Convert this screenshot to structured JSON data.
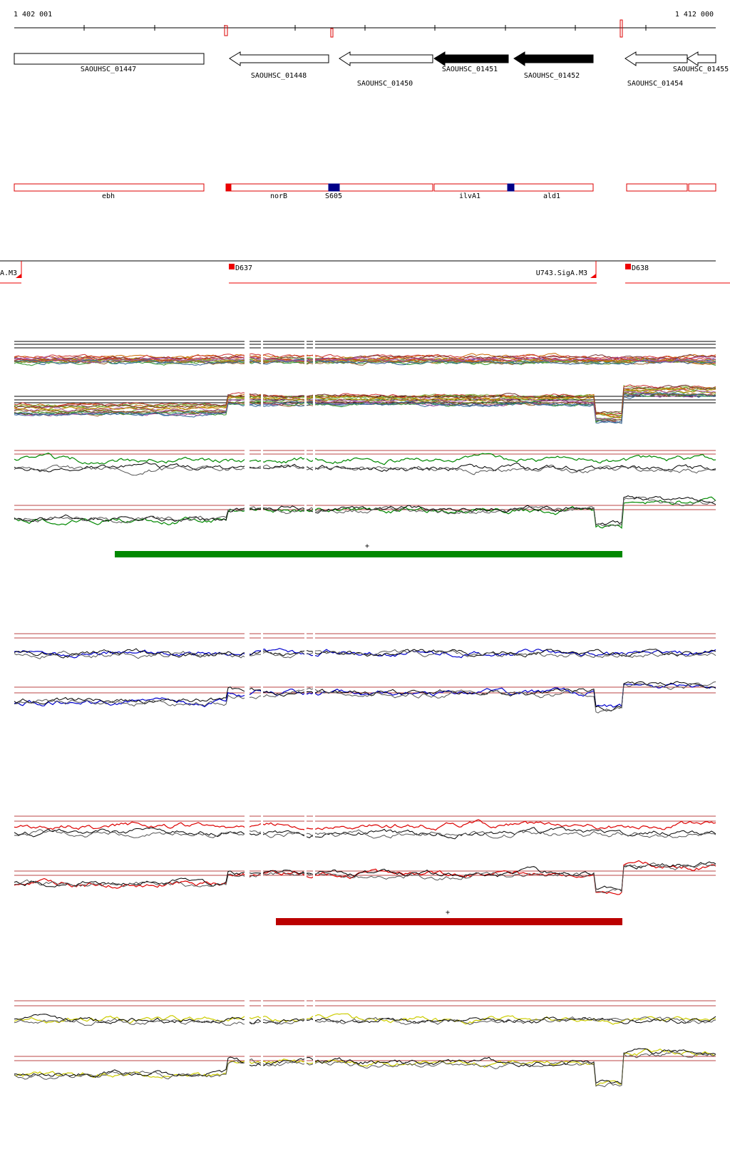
{
  "coordinates": {
    "start": "1 402 001",
    "end": "1 412 000"
  },
  "genes": [
    "SAOUHSC_01447",
    "SAOUHSC_01448",
    "SAOUHSC_01450",
    "SAOUHSC_01451",
    "SAOUHSC_01452",
    "SAOUHSC_01454",
    "SAOUHSC_01455"
  ],
  "features": [
    "ebh",
    "norB",
    "S605",
    "ilvA1",
    "ald1"
  ],
  "promoters": [
    "A.M3",
    "D637",
    "U743.SigA.M3",
    "D638"
  ],
  "markers": [
    "+",
    "+"
  ]
}
